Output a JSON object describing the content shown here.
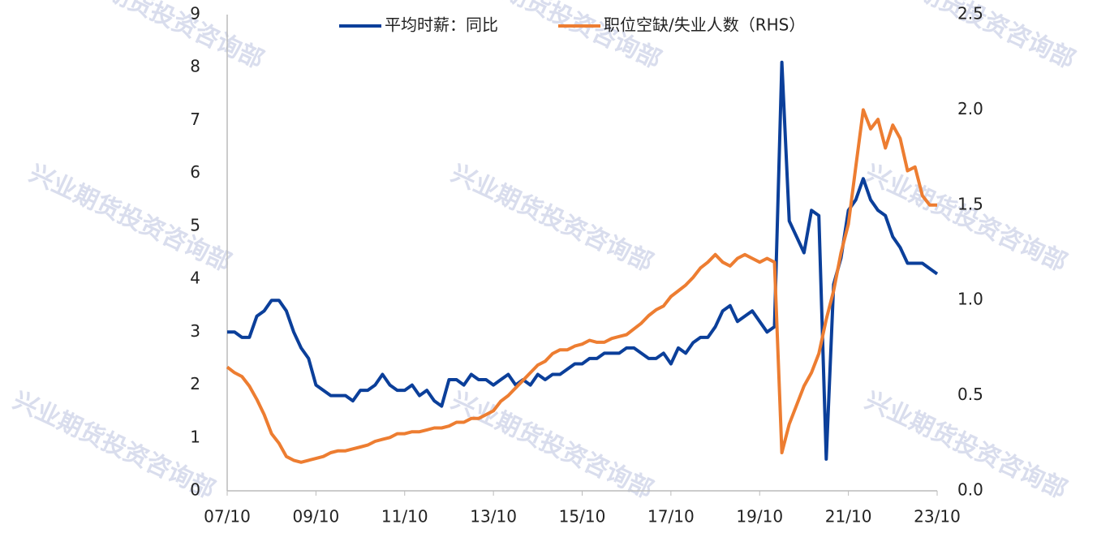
{
  "chart_data": {
    "type": "line",
    "watermark": "兴业期货投资咨询部",
    "categories": [
      "07/10",
      null,
      null,
      null,
      null,
      null,
      null,
      null,
      null,
      null,
      null,
      null,
      "09/10",
      null,
      null,
      null,
      null,
      null,
      null,
      null,
      null,
      null,
      null,
      null,
      "11/10",
      null,
      null,
      null,
      null,
      null,
      null,
      null,
      null,
      null,
      null,
      null,
      "13/10",
      null,
      null,
      null,
      null,
      null,
      null,
      null,
      null,
      null,
      null,
      null,
      "15/10",
      null,
      null,
      null,
      null,
      null,
      null,
      null,
      null,
      null,
      null,
      null,
      "17/10",
      null,
      null,
      null,
      null,
      null,
      null,
      null,
      null,
      null,
      null,
      null,
      "19/10",
      null,
      null,
      null,
      null,
      null,
      null,
      null,
      null,
      null,
      null,
      null,
      "21/10",
      null,
      null,
      null,
      null,
      null,
      null,
      null,
      null,
      null,
      null,
      null,
      "23/10"
    ],
    "series": [
      {
        "name": "平均时薪：同比",
        "color": "#0b3f9a",
        "axis": "y",
        "values": [
          3.0,
          3.0,
          2.9,
          2.9,
          3.3,
          3.4,
          3.6,
          3.6,
          3.4,
          3.0,
          2.7,
          2.5,
          2.0,
          1.9,
          1.8,
          1.8,
          1.8,
          1.7,
          1.9,
          1.9,
          2.0,
          2.2,
          2.0,
          1.9,
          1.9,
          2.0,
          1.8,
          1.9,
          1.7,
          1.6,
          2.1,
          2.1,
          2.0,
          2.2,
          2.1,
          2.1,
          2.0,
          2.1,
          2.2,
          2.0,
          2.1,
          2.0,
          2.2,
          2.1,
          2.2,
          2.2,
          2.3,
          2.4,
          2.4,
          2.5,
          2.5,
          2.6,
          2.6,
          2.6,
          2.7,
          2.7,
          2.6,
          2.5,
          2.5,
          2.6,
          2.4,
          2.7,
          2.6,
          2.8,
          2.9,
          2.9,
          3.1,
          3.4,
          3.5,
          3.2,
          3.3,
          3.4,
          3.2,
          3.0,
          3.1,
          8.1,
          5.1,
          4.8,
          4.5,
          5.3,
          5.2,
          0.6,
          3.9,
          4.4,
          5.3,
          5.5,
          5.9,
          5.5,
          5.3,
          5.2,
          4.8,
          4.6,
          4.3,
          4.3,
          4.3,
          4.2,
          4.1
        ]
      },
      {
        "name": "职位空缺/失业人数（RHS）",
        "color": "#ed7d31",
        "axis": "y2",
        "values": [
          0.65,
          0.62,
          0.6,
          0.55,
          0.48,
          0.4,
          0.3,
          0.25,
          0.18,
          0.16,
          0.15,
          0.16,
          0.17,
          0.18,
          0.2,
          0.21,
          0.21,
          0.22,
          0.23,
          0.24,
          0.26,
          0.27,
          0.28,
          0.3,
          0.3,
          0.31,
          0.31,
          0.32,
          0.33,
          0.33,
          0.34,
          0.36,
          0.36,
          0.38,
          0.38,
          0.4,
          0.42,
          0.47,
          0.5,
          0.54,
          0.58,
          0.62,
          0.66,
          0.68,
          0.72,
          0.74,
          0.74,
          0.76,
          0.77,
          0.79,
          0.78,
          0.78,
          0.8,
          0.81,
          0.82,
          0.85,
          0.88,
          0.92,
          0.95,
          0.97,
          1.02,
          1.05,
          1.08,
          1.12,
          1.17,
          1.2,
          1.24,
          1.2,
          1.18,
          1.22,
          1.24,
          1.22,
          1.2,
          1.22,
          1.2,
          0.2,
          0.35,
          0.45,
          0.55,
          0.62,
          0.72,
          0.9,
          1.05,
          1.25,
          1.4,
          1.7,
          2.0,
          1.9,
          1.95,
          1.8,
          1.92,
          1.85,
          1.68,
          1.7,
          1.55,
          1.5,
          1.5
        ]
      }
    ],
    "ylim": [
      0,
      9
    ],
    "yticks": [
      0,
      1,
      2,
      3,
      4,
      5,
      6,
      7,
      8,
      9
    ],
    "y2lim": [
      0,
      2.5
    ],
    "y2ticks": [
      {
        "value": 0,
        "label": "0.0"
      },
      0.5,
      {
        "value": 1,
        "label": "1.0"
      },
      1.5,
      {
        "value": 2,
        "label": "2.0"
      },
      2.5
    ],
    "legend": "top",
    "grid": false
  }
}
